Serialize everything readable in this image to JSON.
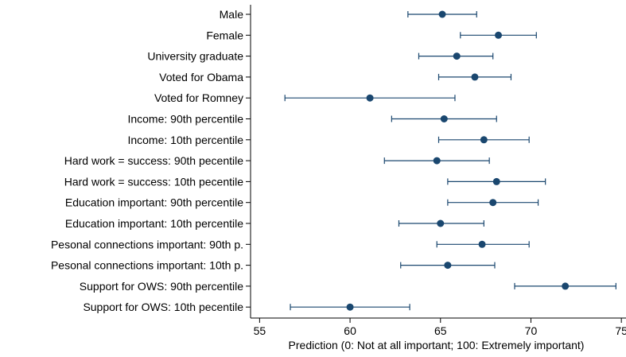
{
  "chart_data": {
    "type": "scatter",
    "subtype": "coefficient-plot-with-confidence-intervals",
    "orientation": "horizontal",
    "title": "",
    "xlabel": "Prediction (0: Not at all important; 100: Extremely important)",
    "ylabel": "",
    "xlim": [
      54.5,
      75.3
    ],
    "xticks": [
      55,
      60,
      65,
      70,
      75
    ],
    "grid": false,
    "legend": "none",
    "colors": {
      "marker": "#1a476f",
      "ci": "#1a476f",
      "axis": "#000000",
      "text": "#000000"
    },
    "categories": [
      "Male",
      "Female",
      "University graduate",
      "Voted for Obama",
      "Voted for Romney",
      "Income: 90th percentile",
      "Income: 10th percentile",
      "Hard work = success: 90th pecentile",
      "Hard work = success: 10th pecentile",
      "Education important: 90th percentile",
      "Education important: 10th percentile",
      "Pesonal connections important: 90th p.",
      "Pesonal connections important: 10th p.",
      "Support for OWS: 90th percentile",
      "Support for OWS: 10th pecentile"
    ],
    "points": [
      {
        "estimate": 65.1,
        "lower": 63.2,
        "upper": 67.0
      },
      {
        "estimate": 68.2,
        "lower": 66.1,
        "upper": 70.3
      },
      {
        "estimate": 65.9,
        "lower": 63.8,
        "upper": 67.9
      },
      {
        "estimate": 66.9,
        "lower": 64.9,
        "upper": 68.9
      },
      {
        "estimate": 61.1,
        "lower": 56.4,
        "upper": 65.8
      },
      {
        "estimate": 65.2,
        "lower": 62.3,
        "upper": 68.1
      },
      {
        "estimate": 67.4,
        "lower": 64.9,
        "upper": 69.9
      },
      {
        "estimate": 64.8,
        "lower": 61.9,
        "upper": 67.7
      },
      {
        "estimate": 68.1,
        "lower": 65.4,
        "upper": 70.8
      },
      {
        "estimate": 67.9,
        "lower": 65.4,
        "upper": 70.4
      },
      {
        "estimate": 65.0,
        "lower": 62.7,
        "upper": 67.4
      },
      {
        "estimate": 67.3,
        "lower": 64.8,
        "upper": 69.9
      },
      {
        "estimate": 65.4,
        "lower": 62.8,
        "upper": 68.0
      },
      {
        "estimate": 71.9,
        "lower": 69.1,
        "upper": 74.7
      },
      {
        "estimate": 60.0,
        "lower": 56.7,
        "upper": 63.3
      }
    ]
  }
}
